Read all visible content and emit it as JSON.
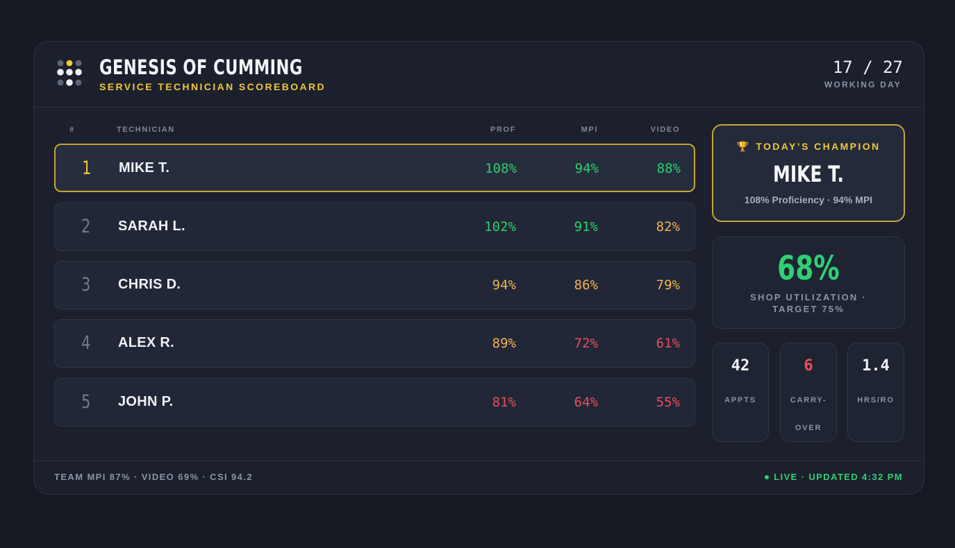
{
  "header": {
    "title": "GENESIS OF CUMMING",
    "subtitle": "SERVICE TECHNICIAN SCOREBOARD",
    "day_count": "17 / 27",
    "day_label": "WORKING DAY"
  },
  "table": {
    "columns": {
      "rank": "#",
      "technician": "TECHNICIAN",
      "prof": "PROF",
      "mpi": "MPI",
      "video": "VIDEO"
    },
    "rows": [
      {
        "rank": "1",
        "name": "MIKE T.",
        "prof": "108%",
        "mpi": "94%",
        "video": "88%"
      },
      {
        "rank": "2",
        "name": "SARAH L.",
        "prof": "102%",
        "mpi": "91%",
        "video": "82%"
      },
      {
        "rank": "3",
        "name": "CHRIS D.",
        "prof": "94%",
        "mpi": "86%",
        "video": "79%"
      },
      {
        "rank": "4",
        "name": "ALEX R.",
        "prof": "89%",
        "mpi": "72%",
        "video": "61%"
      },
      {
        "rank": "5",
        "name": "JOHN P.",
        "prof": "81%",
        "mpi": "64%",
        "video": "55%"
      }
    ]
  },
  "champion": {
    "label": "TODAY’S CHAMPION",
    "icon": "trophy-icon",
    "name": "MIKE T.",
    "stats": "108% Proficiency · 94% MPI"
  },
  "utilization": {
    "value": "68%",
    "label": "SHOP UTILIZATION · TARGET 75%"
  },
  "mini_stats": [
    {
      "value": "42",
      "label": "APPTS"
    },
    {
      "value": "6",
      "label": "CARRY-OVER"
    },
    {
      "value": "1.4",
      "label": "HRS/RO"
    }
  ],
  "footer": {
    "team_summary": "TEAM MPI 87% · VIDEO 69% · CSI 94.2",
    "live_status": "LIVE · UPDATED 4:32 PM"
  },
  "colors": {
    "background": "#151922",
    "panel": "#1b202c",
    "accent_gold": "#f2c63a",
    "good_green": "#2fcf74",
    "warn_orange": "#f0b255",
    "bad_red": "#ea4e5e"
  }
}
